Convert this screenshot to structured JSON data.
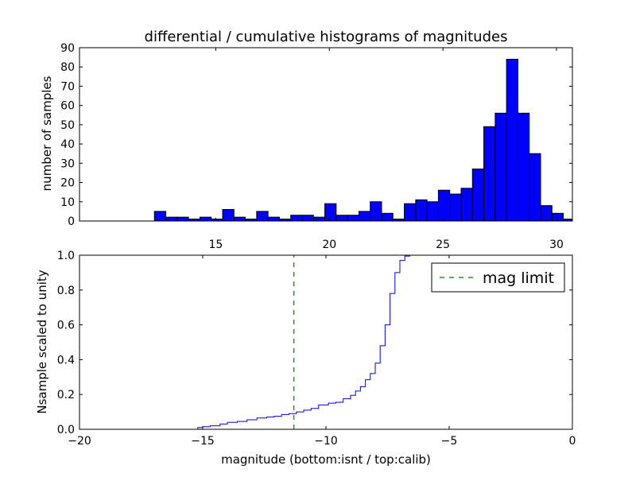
{
  "chart_data": [
    {
      "type": "bar",
      "title": "differential / cumulative histograms of magnitudes",
      "xlabel": "",
      "ylabel": "number of samples",
      "xlim": [
        9.0,
        30.7
      ],
      "ylim": [
        0,
        90
      ],
      "xticks": [
        15,
        20,
        25,
        30
      ],
      "xtick_labels": [
        "15",
        "20",
        "25",
        "30"
      ],
      "xtick_position": "top",
      "yticks": [
        0,
        10,
        20,
        30,
        40,
        50,
        60,
        70,
        80,
        90
      ],
      "ytick_labels": [
        "0",
        "10",
        "20",
        "30",
        "40",
        "50",
        "60",
        "70",
        "80",
        "90"
      ],
      "bar_color": "#0000ff",
      "bin_edges": [
        12.3,
        12.8,
        13.3,
        13.8,
        14.3,
        14.8,
        15.3,
        15.8,
        16.3,
        16.8,
        17.3,
        17.8,
        18.3,
        18.8,
        19.3,
        19.8,
        20.3,
        20.8,
        21.3,
        21.8,
        22.3,
        22.8,
        23.3,
        23.8,
        24.3,
        24.8,
        25.3,
        25.8,
        26.3,
        26.8,
        27.3,
        27.8,
        28.3,
        28.8,
        29.3,
        29.8,
        30.3,
        30.8
      ],
      "values": [
        5,
        2,
        2,
        1,
        2,
        1,
        6,
        2,
        1,
        5,
        2,
        1,
        3,
        3,
        2,
        9,
        3,
        3,
        5,
        10,
        4,
        1,
        9,
        11,
        10,
        16,
        14,
        17,
        27,
        49,
        56,
        84,
        56,
        35,
        8,
        4,
        1
      ]
    },
    {
      "type": "line",
      "title": "",
      "xlabel": "magnitude (bottom:isnt / top:calib)",
      "ylabel": "Nsample scaled to unity",
      "xlim": [
        -20,
        0
      ],
      "ylim": [
        0.0,
        1.0
      ],
      "xticks": [
        -20,
        -15,
        -10,
        -5,
        0
      ],
      "xtick_labels": [
        "−20",
        "−15",
        "−10",
        "−5",
        "0"
      ],
      "yticks": [
        0.0,
        0.2,
        0.4,
        0.6,
        0.8,
        1.0
      ],
      "ytick_labels": [
        "0.0",
        "0.2",
        "0.4",
        "0.6",
        "0.8",
        "1.0"
      ],
      "legend_position": "top-right",
      "series": [
        {
          "name": "",
          "color": "#0000ff",
          "style": "step",
          "x": [
            -20.0,
            -15.2,
            -15.0,
            -14.7,
            -14.3,
            -14.0,
            -13.6,
            -13.2,
            -12.8,
            -12.4,
            -12.1,
            -11.8,
            -11.5,
            -11.2,
            -10.9,
            -10.6,
            -10.3,
            -9.9,
            -9.6,
            -9.3,
            -9.0,
            -8.8,
            -8.6,
            -8.4,
            -8.2,
            -8.0,
            -7.8,
            -7.6,
            -7.4,
            -7.2,
            -7.0,
            -6.8,
            -6.6,
            -6.4
          ],
          "y": [
            0.0,
            0.01,
            0.015,
            0.02,
            0.03,
            0.04,
            0.045,
            0.055,
            0.065,
            0.07,
            0.075,
            0.085,
            0.09,
            0.1,
            0.11,
            0.12,
            0.14,
            0.15,
            0.155,
            0.175,
            0.195,
            0.22,
            0.245,
            0.285,
            0.32,
            0.38,
            0.48,
            0.6,
            0.78,
            0.9,
            0.97,
            0.995,
            1.0,
            1.0
          ]
        },
        {
          "name": "mag limit",
          "color": "#008000",
          "style": "dashed-vertical",
          "x_value": -11.3
        }
      ]
    }
  ]
}
